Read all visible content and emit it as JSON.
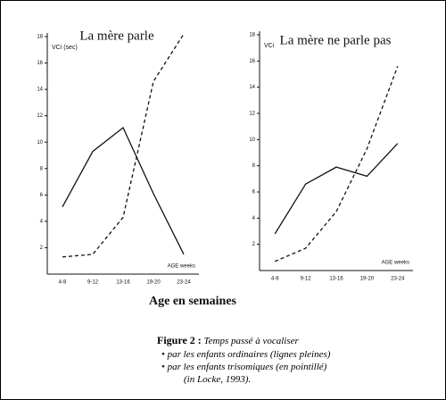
{
  "chart_data": [
    {
      "type": "line",
      "title": "La mère parle",
      "y_label": "VCi (sec)",
      "x_label": "AGE weeks",
      "categories": [
        "4-8",
        "9-12",
        "13-16",
        "19-20",
        "23-24"
      ],
      "series": [
        {
          "style": "solid",
          "color": "#111",
          "values": [
            5.1,
            9.3,
            11.1,
            6.1,
            1.5
          ]
        },
        {
          "style": "dashed",
          "color": "#111",
          "values": [
            1.3,
            1.5,
            4.3,
            14.6,
            18.2
          ]
        }
      ],
      "ylim": [
        0,
        18
      ],
      "yticks": [
        2,
        4,
        6,
        8,
        10,
        12,
        14,
        16,
        18
      ]
    },
    {
      "type": "line",
      "title": "La mère ne parle pas",
      "y_label": "VCi",
      "x_label": "AGE weeks",
      "categories": [
        "4-8",
        "9-12",
        "13-16",
        "19-20",
        "23-24"
      ],
      "series": [
        {
          "style": "solid",
          "color": "#111",
          "values": [
            2.8,
            6.6,
            7.9,
            7.2,
            9.7
          ]
        },
        {
          "style": "dashed",
          "color": "#111",
          "values": [
            0.7,
            1.7,
            4.5,
            9.3,
            15.6
          ]
        }
      ],
      "ylim": [
        0,
        18
      ],
      "yticks": [
        2,
        4,
        6,
        8,
        10,
        12,
        14,
        16,
        18
      ]
    }
  ],
  "x_axis_title": "Age en semaines",
  "caption": {
    "label": "Figure 2 :",
    "lines": [
      "Temps passé à vocaliser",
      "• par les enfants ordinaires (lignes pleines)",
      "• par les enfants trisomiques (en pointillé)",
      "(in Locke, 1993)."
    ]
  }
}
